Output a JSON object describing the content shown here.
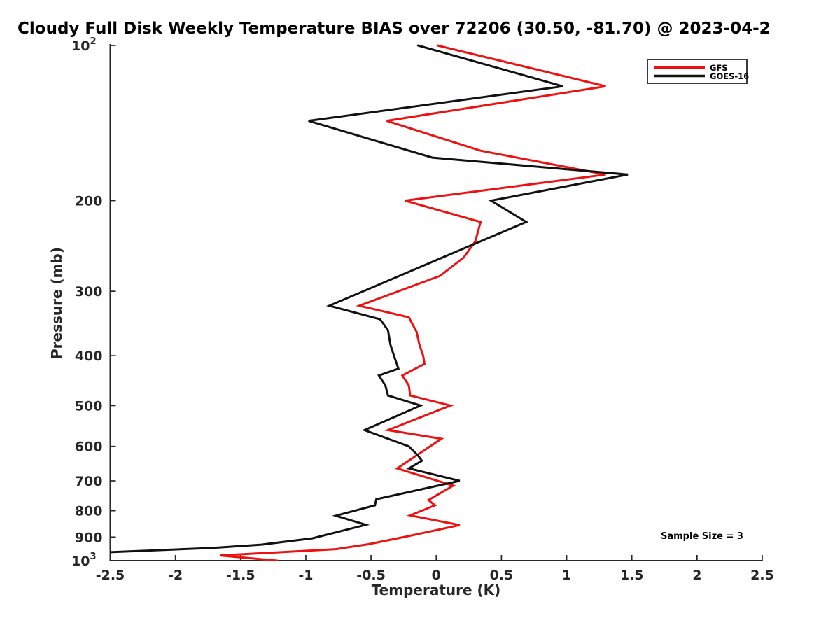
{
  "title": "Cloudy Full Disk Weekly Temperature BIAS over 72206 (30.50, -81.70) @ 2023-04-2",
  "annotation": "Sample Size = 3",
  "legend": {
    "entries": [
      {
        "label": "GFS",
        "color": "#ee1111"
      },
      {
        "label": "GOES-16",
        "color": "#111111"
      }
    ]
  },
  "axes": {
    "x": {
      "label": "Temperature (K)",
      "min": -2.5,
      "max": 2.5,
      "ticks": [
        {
          "v": -2.5,
          "label": "-2.5"
        },
        {
          "v": -2,
          "label": "-2"
        },
        {
          "v": -1.5,
          "label": "-1.5"
        },
        {
          "v": -1,
          "label": "-1"
        },
        {
          "v": -0.5,
          "label": "-0.5"
        },
        {
          "v": 0,
          "label": "0"
        },
        {
          "v": 0.5,
          "label": "0.5"
        },
        {
          "v": 1,
          "label": "1"
        },
        {
          "v": 1.5,
          "label": "1.5"
        },
        {
          "v": 2,
          "label": "2"
        },
        {
          "v": 2.5,
          "label": "2.5"
        }
      ]
    },
    "y": {
      "label": "Pressure (mb)",
      "scale": "log",
      "min": 100,
      "max": 1000,
      "inverted": true,
      "ticks": [
        {
          "v": 100,
          "label": "10",
          "exp": "2"
        },
        {
          "v": 200,
          "label": "200"
        },
        {
          "v": 300,
          "label": "300"
        },
        {
          "v": 400,
          "label": "400"
        },
        {
          "v": 500,
          "label": "500"
        },
        {
          "v": 600,
          "label": "600"
        },
        {
          "v": 700,
          "label": "700"
        },
        {
          "v": 800,
          "label": "800"
        },
        {
          "v": 900,
          "label": "900"
        },
        {
          "v": 1000,
          "label": "10",
          "exp": "3"
        }
      ]
    }
  },
  "chart_data": {
    "type": "line",
    "title": "Cloudy Full Disk Weekly Temperature BIAS over 72206 (30.50, -81.70) @ 2023-04-2",
    "xlabel": "Temperature (K)",
    "ylabel": "Pressure (mb)",
    "xlim": [
      -2.5,
      2.5
    ],
    "y_scale": "log",
    "ylim": [
      100,
      1000
    ],
    "y_inverted": true,
    "grid": false,
    "legend_position": "upper right",
    "annotation": "Sample Size = 3",
    "point_format": "[temperature_bias_K, pressure_mb]",
    "series": [
      {
        "name": "GFS",
        "color": "#ee1111",
        "points": [
          [
            0.01,
            100
          ],
          [
            1.3,
            120
          ],
          [
            -0.38,
            140
          ],
          [
            0.34,
            160
          ],
          [
            1.3,
            178
          ],
          [
            -0.24,
            200
          ],
          [
            0.34,
            220
          ],
          [
            0.3,
            240
          ],
          [
            0.21,
            258
          ],
          [
            0.03,
            280
          ],
          [
            -0.59,
            320
          ],
          [
            -0.21,
            337
          ],
          [
            -0.15,
            360
          ],
          [
            -0.13,
            380
          ],
          [
            -0.1,
            400
          ],
          [
            -0.09,
            415
          ],
          [
            -0.26,
            437
          ],
          [
            -0.21,
            457
          ],
          [
            -0.2,
            478
          ],
          [
            0.11,
            500
          ],
          [
            -0.37,
            558
          ],
          [
            0.04,
            580
          ],
          [
            -0.3,
            662
          ],
          [
            0.13,
            715
          ],
          [
            -0.06,
            763
          ],
          [
            -0.01,
            781
          ],
          [
            -0.2,
            817
          ],
          [
            0.18,
            853
          ],
          [
            -0.23,
            898
          ],
          [
            -0.52,
            929
          ],
          [
            -0.77,
            950
          ],
          [
            -1.66,
            977
          ],
          [
            -1.22,
            1000
          ]
        ]
      },
      {
        "name": "GOES-16",
        "color": "#111111",
        "points": [
          [
            -0.14,
            100
          ],
          [
            0.97,
            120
          ],
          [
            -0.98,
            140
          ],
          [
            -0.03,
            165
          ],
          [
            1.47,
            178
          ],
          [
            0.42,
            200
          ],
          [
            0.69,
            220
          ],
          [
            -0.82,
            320
          ],
          [
            -0.43,
            340
          ],
          [
            -0.37,
            357
          ],
          [
            -0.35,
            382
          ],
          [
            -0.32,
            403
          ],
          [
            -0.29,
            424
          ],
          [
            -0.44,
            437
          ],
          [
            -0.39,
            457
          ],
          [
            -0.37,
            478
          ],
          [
            -0.12,
            500
          ],
          [
            -0.55,
            558
          ],
          [
            -0.21,
            600
          ],
          [
            -0.14,
            625
          ],
          [
            -0.11,
            640
          ],
          [
            -0.21,
            662
          ],
          [
            0.18,
            700
          ],
          [
            -0.46,
            760
          ],
          [
            -0.47,
            781
          ],
          [
            -0.77,
            818
          ],
          [
            -0.54,
            852
          ],
          [
            -0.95,
            905
          ],
          [
            -1.34,
            931
          ],
          [
            -1.72,
            945
          ],
          [
            -2.5,
            963
          ]
        ]
      }
    ]
  }
}
